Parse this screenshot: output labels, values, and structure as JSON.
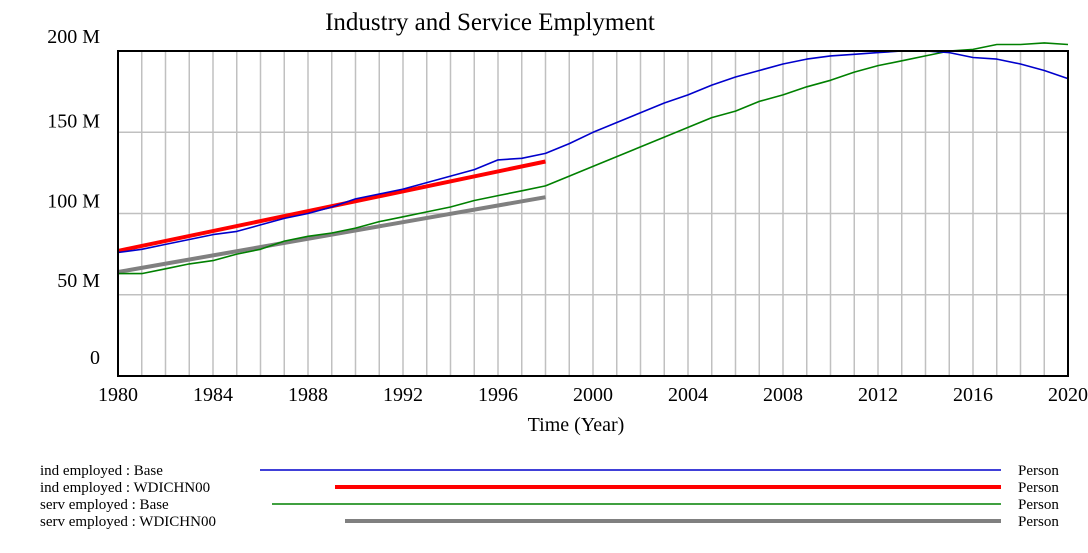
{
  "chart_data": {
    "type": "line",
    "title": "Industry and Service Emplyment",
    "xlabel": "Time (Year)",
    "ylabel": "",
    "xlim": [
      1980,
      2020
    ],
    "ylim": [
      0,
      200000000
    ],
    "x_ticks": [
      "1980",
      "1984",
      "1988",
      "1992",
      "1996",
      "2000",
      "2004",
      "2008",
      "2012",
      "2016",
      "2020"
    ],
    "y_ticks": [
      "0",
      "50 M",
      "100 M",
      "150 M",
      "200 M"
    ],
    "grid": true,
    "legend_position": "bottom",
    "series": [
      {
        "name": "ind employed : Base",
        "unit": "Person",
        "color": "#0000cc",
        "x": [
          1980,
          1981,
          1982,
          1983,
          1984,
          1985,
          1986,
          1987,
          1988,
          1989,
          1990,
          1991,
          1992,
          1993,
          1994,
          1995,
          1996,
          1997,
          1998,
          1999,
          2000,
          2001,
          2002,
          2003,
          2004,
          2005,
          2006,
          2007,
          2008,
          2009,
          2010,
          2011,
          2012,
          2013,
          2014,
          2015,
          2016,
          2017,
          2018,
          2019,
          2020
        ],
        "values": [
          76000000,
          78000000,
          81000000,
          84000000,
          87000000,
          89000000,
          93000000,
          97000000,
          100000000,
          104000000,
          109000000,
          112000000,
          115000000,
          119000000,
          123000000,
          127000000,
          133000000,
          134000000,
          137000000,
          143000000,
          150000000,
          156000000,
          162000000,
          168000000,
          173000000,
          179000000,
          184000000,
          188000000,
          192000000,
          195000000,
          197000000,
          198000000,
          199000000,
          200000000,
          200000000,
          199000000,
          196000000,
          195000000,
          192000000,
          188000000,
          183000000
        ]
      },
      {
        "name": "ind employed : WDICHN00",
        "unit": "Person",
        "color": "#ff0000",
        "x": [
          1980,
          1998
        ],
        "values": [
          77000000,
          132000000
        ]
      },
      {
        "name": "serv employed : Base",
        "unit": "Person",
        "color": "#008000",
        "x": [
          1980,
          1981,
          1982,
          1983,
          1984,
          1985,
          1986,
          1987,
          1988,
          1989,
          1990,
          1991,
          1992,
          1993,
          1994,
          1995,
          1996,
          1997,
          1998,
          1999,
          2000,
          2001,
          2002,
          2003,
          2004,
          2005,
          2006,
          2007,
          2008,
          2009,
          2010,
          2011,
          2012,
          2013,
          2014,
          2015,
          2016,
          2017,
          2018,
          2019,
          2020
        ],
        "values": [
          63000000,
          63000000,
          66000000,
          69000000,
          71000000,
          75000000,
          78000000,
          83000000,
          86000000,
          88000000,
          91000000,
          95000000,
          98000000,
          101000000,
          104000000,
          108000000,
          111000000,
          114000000,
          117000000,
          123000000,
          129000000,
          135000000,
          141000000,
          147000000,
          153000000,
          159000000,
          163000000,
          169000000,
          173000000,
          178000000,
          182000000,
          187000000,
          191000000,
          194000000,
          197000000,
          200000000,
          201000000,
          204000000,
          204000000,
          205000000,
          204000000
        ]
      },
      {
        "name": "serv employed : WDICHN00",
        "unit": "Person",
        "color": "#808080",
        "x": [
          1980,
          1998
        ],
        "values": [
          64000000,
          110000000
        ]
      }
    ]
  }
}
